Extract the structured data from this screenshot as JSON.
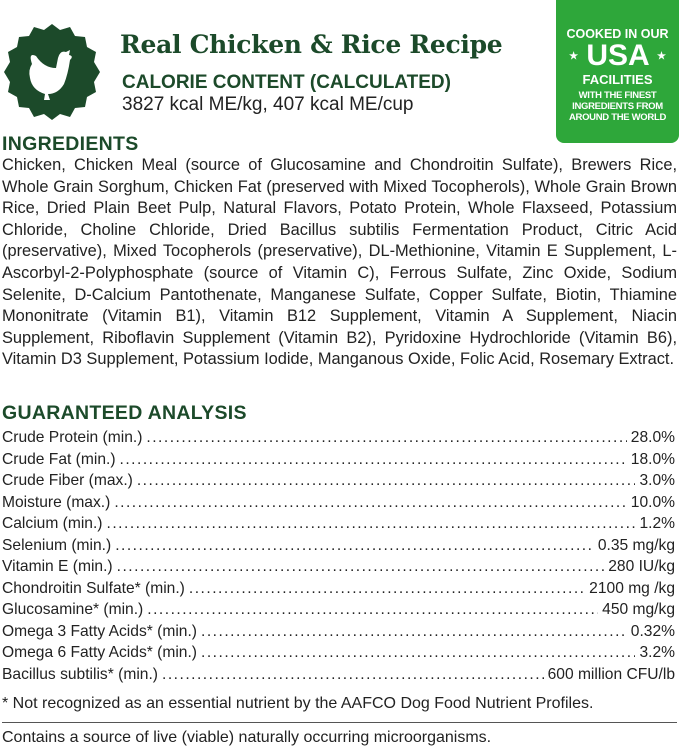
{
  "header": {
    "title": "Real Chicken & Rice Recipe",
    "calorie_heading": "CALORIE CONTENT (CALCULATED)",
    "calorie_value": "3827 kcal ME/kg, 407 kcal ME/cup",
    "seal_icon": "chicken-icon"
  },
  "badge": {
    "line1": "COOKED IN OUR",
    "line2": "USA",
    "line3": "FACILITIES",
    "line4": "WITH THE FINEST INGREDIENTS FROM AROUND THE WORLD",
    "color": "#2ea73a"
  },
  "ingredients": {
    "heading": "INGREDIENTS",
    "text": "Chicken, Chicken Meal (source of Glucosamine and Chondroitin Sulfate), Brewers Rice, Whole Grain Sorghum, Chicken Fat (preserved with Mixed Tocopherols), Whole Grain Brown Rice, Dried Plain Beet Pulp, Natural Flavors, Potato Protein, Whole Flaxseed, Potassium Chloride, Choline Chloride, Dried Bacillus subtilis Fermentation Product, Citric Acid (preservative), Mixed Tocopherols (preservative), DL-Methionine, Vitamin E Supplement, L-Ascorbyl-2-Polyphosphate (source of Vitamin C), Ferrous Sulfate, Zinc Oxide, Sodium Selenite, D-Calcium Pantothenate, Manganese Sulfate, Copper Sulfate, Biotin, Thiamine Mononitrate (Vitamin B1), Vitamin B12 Supplement, Vitamin A Supplement, Niacin Supplement, Riboflavin Supplement (Vitamin B2), Pyridoxine Hydrochloride (Vitamin B6), Vitamin D3 Supplement, Potassium Iodide, Manganous Oxide, Folic Acid, Rosemary Extract."
  },
  "analysis": {
    "heading": "GUARANTEED ANALYSIS",
    "rows": [
      {
        "label": "Crude Protein (min.)",
        "value": "28.0%"
      },
      {
        "label": "Crude Fat (min.)",
        "value": "18.0%"
      },
      {
        "label": "Crude Fiber (max.)",
        "value": "3.0%"
      },
      {
        "label": "Moisture (max.)",
        "value": "10.0%"
      },
      {
        "label": "Calcium (min.)",
        "value": "1.2%"
      },
      {
        "label": "Selenium (min.)",
        "value": "0.35 mg/kg"
      },
      {
        "label": "Vitamin E (min.)",
        "value": "280 IU/kg"
      },
      {
        "label": "Chondroitin Sulfate* (min.)",
        "value": "2100 mg /kg"
      },
      {
        "label": "Glucosamine* (min.)",
        "value": "450 mg/kg"
      },
      {
        "label": "Omega 3 Fatty Acids* (min.)",
        "value": "0.32%"
      },
      {
        "label": "Omega 6 Fatty Acids* (min.)",
        "value": "3.2%"
      },
      {
        "label": "Bacillus subtilis* (min.)",
        "value": "600 million CFU/lb"
      }
    ]
  },
  "footnote": "* Not recognized as an essential nutrient by the AAFCO Dog Food Nutrient Profiles.",
  "live_note": "Contains a source of live (viable) naturally occurring microorganisms."
}
